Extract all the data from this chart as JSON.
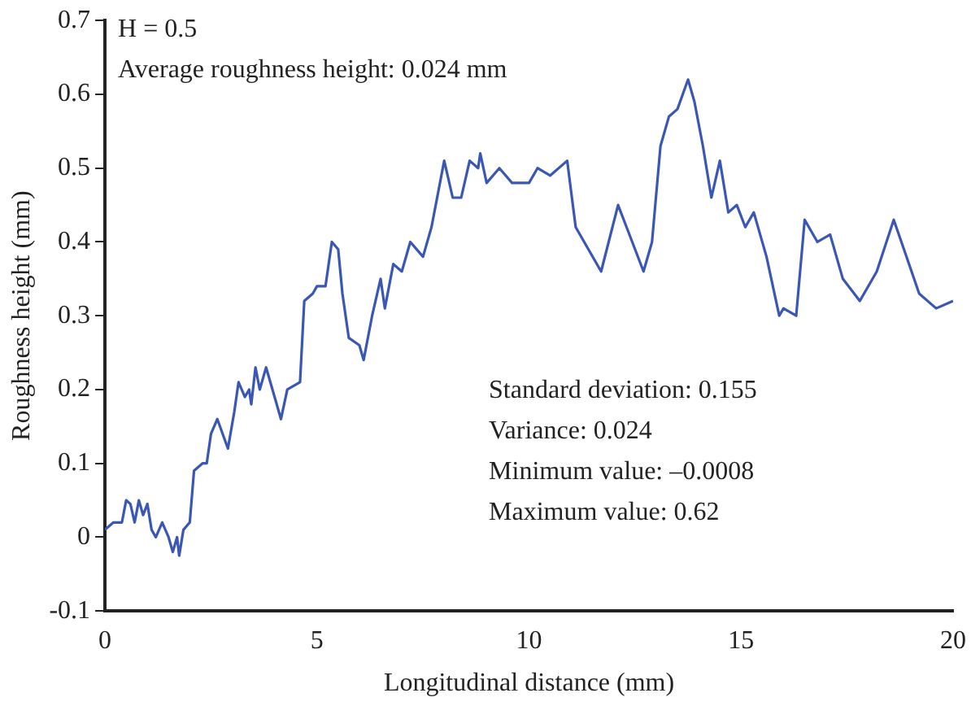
{
  "chart_data": {
    "type": "line",
    "xlabel": "Longitudinal distance (mm)",
    "ylabel": "Roughness height (mm)",
    "annotations": [
      "H = 0.5",
      "Average roughness height: 0.024 mm",
      "Standard deviation: 0.155",
      "Variance: 0.024",
      "Minimum value: –0.0008",
      "Maximum value: 0.62"
    ],
    "series": [
      {
        "color": "#3a57b5",
        "x": [
          0,
          0.2,
          0.4,
          0.5,
          0.6,
          0.7,
          0.8,
          0.9,
          1.0,
          1.1,
          1.2,
          1.35,
          1.5,
          1.6,
          1.7,
          1.75,
          1.85,
          2.0,
          2.1,
          2.3,
          2.4,
          2.5,
          2.65,
          2.9,
          3.05,
          3.15,
          3.3,
          3.4,
          3.45,
          3.55,
          3.65,
          3.8,
          4.0,
          4.15,
          4.3,
          4.6,
          4.7,
          4.9,
          5.0,
          5.2,
          5.35,
          5.5,
          5.6,
          5.75,
          6.0,
          6.1,
          6.3,
          6.5,
          6.6,
          6.8,
          7.0,
          7.2,
          7.5,
          7.7,
          8.0,
          8.2,
          8.4,
          8.6,
          8.8,
          8.85,
          9.0,
          9.3,
          9.6,
          10,
          10.2,
          10.5,
          10.9,
          11.1,
          11.4,
          11.7,
          12.1,
          12.3,
          12.5,
          12.7,
          12.9,
          13.1,
          13.3,
          13.5,
          13.75,
          13.9,
          14.1,
          14.3,
          14.5,
          14.7,
          14.9,
          15.1,
          15.3,
          15.6,
          15.9,
          16.0,
          16.3,
          16.5,
          16.8,
          17.1,
          17.4,
          17.8,
          18.2,
          18.6,
          18.9,
          19.2,
          19.6,
          20
        ],
        "values": [
          0.01,
          0.02,
          0.02,
          0.05,
          0.045,
          0.02,
          0.05,
          0.03,
          0.045,
          0.01,
          0.0,
          0.02,
          0.0,
          -0.02,
          0.0,
          -0.025,
          0.01,
          0.02,
          0.09,
          0.1,
          0.1,
          0.14,
          0.16,
          0.12,
          0.17,
          0.21,
          0.19,
          0.2,
          0.18,
          0.23,
          0.2,
          0.23,
          0.19,
          0.16,
          0.2,
          0.21,
          0.32,
          0.33,
          0.34,
          0.34,
          0.4,
          0.39,
          0.33,
          0.27,
          0.26,
          0.24,
          0.3,
          0.35,
          0.31,
          0.37,
          0.36,
          0.4,
          0.38,
          0.42,
          0.51,
          0.46,
          0.46,
          0.51,
          0.5,
          0.52,
          0.48,
          0.5,
          0.48,
          0.48,
          0.5,
          0.49,
          0.51,
          0.42,
          0.39,
          0.36,
          0.45,
          0.42,
          0.39,
          0.36,
          0.4,
          0.53,
          0.57,
          0.58,
          0.62,
          0.59,
          0.53,
          0.46,
          0.51,
          0.44,
          0.45,
          0.42,
          0.44,
          0.38,
          0.3,
          0.31,
          0.3,
          0.43,
          0.4,
          0.41,
          0.35,
          0.32,
          0.36,
          0.43,
          0.38,
          0.33,
          0.31,
          0.32
        ]
      }
    ],
    "xlim": [
      0,
      20
    ],
    "xticks": [
      0,
      5,
      10,
      15,
      20
    ],
    "ylim": [
      -0.1,
      0.7
    ],
    "yticks": [
      -0.1,
      0,
      0.1,
      0.2,
      0.3,
      0.4,
      0.5,
      0.6,
      0.7
    ],
    "grid": false,
    "legend": false,
    "marker": "none",
    "line_style": "solid"
  }
}
